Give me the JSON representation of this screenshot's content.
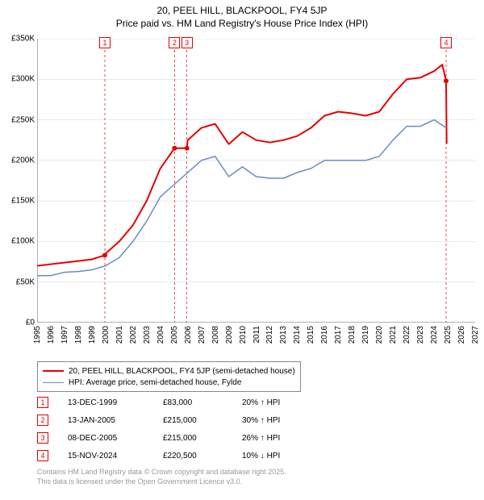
{
  "title_line1": "20, PEEL HILL, BLACKPOOL, FY4 5JP",
  "title_line2": "Price paid vs. HM Land Registry's House Price Index (HPI)",
  "chart": {
    "type": "line",
    "background_color": "#ffffff",
    "axis_color": "#666666",
    "grid_color": "#d0d0d0",
    "xlim": [
      1995,
      2027
    ],
    "ylim": [
      0,
      350000
    ],
    "ytick_step": 50000,
    "ytick_labels": [
      "£0",
      "£50K",
      "£100K",
      "£150K",
      "£200K",
      "£250K",
      "£300K",
      "£350K"
    ],
    "xtick_step": 1,
    "xtick_labels": [
      "1995",
      "1996",
      "1997",
      "1998",
      "1999",
      "2000",
      "2001",
      "2002",
      "2003",
      "2004",
      "2005",
      "2006",
      "2007",
      "2008",
      "2009",
      "2010",
      "2011",
      "2012",
      "2013",
      "2014",
      "2015",
      "2016",
      "2017",
      "2018",
      "2019",
      "2020",
      "2021",
      "2022",
      "2023",
      "2024",
      "2025",
      "2026",
      "2027"
    ],
    "series": [
      {
        "name": "property",
        "label": "20, PEEL HILL, BLACKPOOL, FY4 5JP (semi-detached house)",
        "color": "#e50000",
        "line_width": 2,
        "x": [
          1995,
          1996,
          1997,
          1998,
          1999,
          1999.95,
          2000,
          2001,
          2002,
          2003,
          2004,
          2005.04,
          2005.94,
          2006,
          2007,
          2008,
          2009,
          2010,
          2011,
          2012,
          2013,
          2014,
          2015,
          2016,
          2017,
          2018,
          2019,
          2020,
          2021,
          2022,
          2023,
          2024,
          2024.6,
          2024.88,
          2024.92
        ],
        "y": [
          70000,
          72000,
          74000,
          76000,
          78000,
          83000,
          85000,
          100000,
          120000,
          150000,
          190000,
          215000,
          215000,
          225000,
          240000,
          245000,
          220000,
          235000,
          225000,
          222000,
          225000,
          230000,
          240000,
          255000,
          260000,
          258000,
          255000,
          260000,
          282000,
          300000,
          302000,
          310000,
          318000,
          298000,
          220500
        ]
      },
      {
        "name": "hpi",
        "label": "HPI: Average price, semi-detached house, Fylde",
        "color": "#6b8bc4",
        "line_width": 1.5,
        "x": [
          1995,
          1996,
          1997,
          1998,
          1999,
          2000,
          2001,
          2002,
          2003,
          2004,
          2005,
          2006,
          2007,
          2008,
          2009,
          2010,
          2011,
          2012,
          2013,
          2014,
          2015,
          2016,
          2017,
          2018,
          2019,
          2020,
          2021,
          2022,
          2023,
          2024,
          2024.9
        ],
        "y": [
          58000,
          58000,
          62000,
          63000,
          65000,
          70000,
          80000,
          100000,
          125000,
          155000,
          170000,
          185000,
          200000,
          205000,
          180000,
          192000,
          180000,
          178000,
          178000,
          185000,
          190000,
          200000,
          200000,
          200000,
          200000,
          205000,
          225000,
          242000,
          242000,
          250000,
          240000
        ]
      }
    ],
    "markers": [
      {
        "n": "1",
        "x": 1999.95,
        "color": "#e50000"
      },
      {
        "n": "2",
        "x": 2005.04,
        "color": "#e50000"
      },
      {
        "n": "3",
        "x": 2005.94,
        "color": "#e50000"
      },
      {
        "n": "4",
        "x": 2024.88,
        "color": "#e50000"
      }
    ],
    "sale_points_color": "#e50000",
    "marker_line_color": "#e50000",
    "marker_line_dash": "3,3"
  },
  "legend": {
    "items": [
      {
        "label": "20, PEEL HILL, BLACKPOOL, FY4 5JP (semi-detached house)",
        "color": "#e50000",
        "width": 2
      },
      {
        "label": "HPI: Average price, semi-detached house, Fylde",
        "color": "#6b8bc4",
        "width": 1.5
      }
    ]
  },
  "sales": [
    {
      "n": "1",
      "date": "13-DEC-1999",
      "price": "£83,000",
      "pct": "20% ↑ HPI",
      "marker_color": "#e50000"
    },
    {
      "n": "2",
      "date": "13-JAN-2005",
      "price": "£215,000",
      "pct": "30% ↑ HPI",
      "marker_color": "#e50000"
    },
    {
      "n": "3",
      "date": "08-DEC-2005",
      "price": "£215,000",
      "pct": "26% ↑ HPI",
      "marker_color": "#e50000"
    },
    {
      "n": "4",
      "date": "15-NOV-2024",
      "price": "£220,500",
      "pct": "10% ↓ HPI",
      "marker_color": "#e50000"
    }
  ],
  "footer_line1": "Contains HM Land Registry data © Crown copyright and database right 2025.",
  "footer_line2": "This data is licensed under the Open Government Licence v3.0."
}
